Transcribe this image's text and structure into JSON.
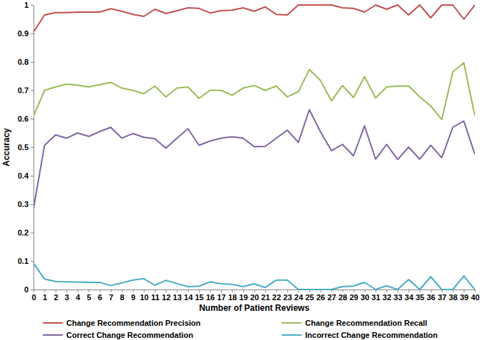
{
  "chart_data": {
    "type": "line",
    "x_label": "Number of Patient Reviews",
    "y_label": "Accuracy",
    "x": [
      0,
      1,
      2,
      3,
      4,
      5,
      6,
      7,
      8,
      9,
      10,
      11,
      12,
      13,
      14,
      15,
      16,
      17,
      18,
      19,
      20,
      21,
      22,
      23,
      24,
      25,
      26,
      27,
      28,
      29,
      30,
      31,
      32,
      33,
      34,
      35,
      36,
      37,
      38,
      39,
      40
    ],
    "xlim": [
      0,
      40
    ],
    "xticks": [
      0,
      1,
      2,
      3,
      4,
      5,
      6,
      7,
      8,
      9,
      10,
      11,
      12,
      13,
      14,
      15,
      16,
      17,
      18,
      19,
      20,
      21,
      22,
      23,
      24,
      25,
      26,
      27,
      28,
      29,
      30,
      31,
      32,
      33,
      34,
      35,
      36,
      37,
      38,
      39,
      40
    ],
    "ylim": [
      0,
      1
    ],
    "yticks": [
      0,
      0.1,
      0.2,
      0.3,
      0.4,
      0.5,
      0.6,
      0.7,
      0.8,
      0.9,
      1
    ],
    "grid": false,
    "legend": "bottom",
    "series": [
      {
        "name": "Change Recommendation Precision",
        "color": "#c0504d",
        "values": [
          0.905,
          0.965,
          0.973,
          0.973,
          0.975,
          0.975,
          0.975,
          0.987,
          0.978,
          0.967,
          0.96,
          0.985,
          0.97,
          0.98,
          0.99,
          0.988,
          0.972,
          0.98,
          0.982,
          0.99,
          0.978,
          0.993,
          0.967,
          0.965,
          1,
          1,
          1,
          1,
          0.99,
          0.988,
          0.975,
          1,
          0.985,
          1,
          0.965,
          1,
          0.955,
          1,
          1,
          0.95,
          1
        ]
      },
      {
        "name": "Change Recommendation Recall",
        "color": "#9bbb59",
        "values": [
          0.61,
          0.7,
          0.712,
          0.722,
          0.718,
          0.712,
          0.72,
          0.728,
          0.708,
          0.7,
          0.688,
          0.715,
          0.677,
          0.708,
          0.712,
          0.672,
          0.7,
          0.7,
          0.683,
          0.708,
          0.717,
          0.7,
          0.715,
          0.677,
          0.695,
          0.773,
          0.735,
          0.663,
          0.717,
          0.675,
          0.748,
          0.673,
          0.712,
          0.715,
          0.715,
          0.677,
          0.645,
          0.597,
          0.765,
          0.797,
          0.61
        ]
      },
      {
        "name": "Correct Change Recommendation",
        "color": "#8064a2",
        "values": [
          0.285,
          0.507,
          0.543,
          0.532,
          0.55,
          0.538,
          0.555,
          0.57,
          0.532,
          0.548,
          0.535,
          0.53,
          0.497,
          0.532,
          0.565,
          0.507,
          0.522,
          0.532,
          0.537,
          0.532,
          0.502,
          0.503,
          0.532,
          0.56,
          0.517,
          0.632,
          0.555,
          0.488,
          0.51,
          0.47,
          0.575,
          0.458,
          0.51,
          0.457,
          0.5,
          0.458,
          0.507,
          0.463,
          0.57,
          0.592,
          0.475
        ]
      },
      {
        "name": "Incorrect Change Recommendation",
        "color": "#4bacc6",
        "values": [
          0.092,
          0.037,
          0.028,
          0.027,
          0.026,
          0.025,
          0.025,
          0.014,
          0.023,
          0.033,
          0.038,
          0.015,
          0.032,
          0.021,
          0.01,
          0.012,
          0.027,
          0.02,
          0.018,
          0.01,
          0.02,
          0.007,
          0.033,
          0.033,
          0,
          0,
          0,
          0,
          0.01,
          0.012,
          0.025,
          0,
          0.013,
          0,
          0.035,
          0,
          0.045,
          0,
          0,
          0.048,
          0
        ]
      }
    ]
  }
}
